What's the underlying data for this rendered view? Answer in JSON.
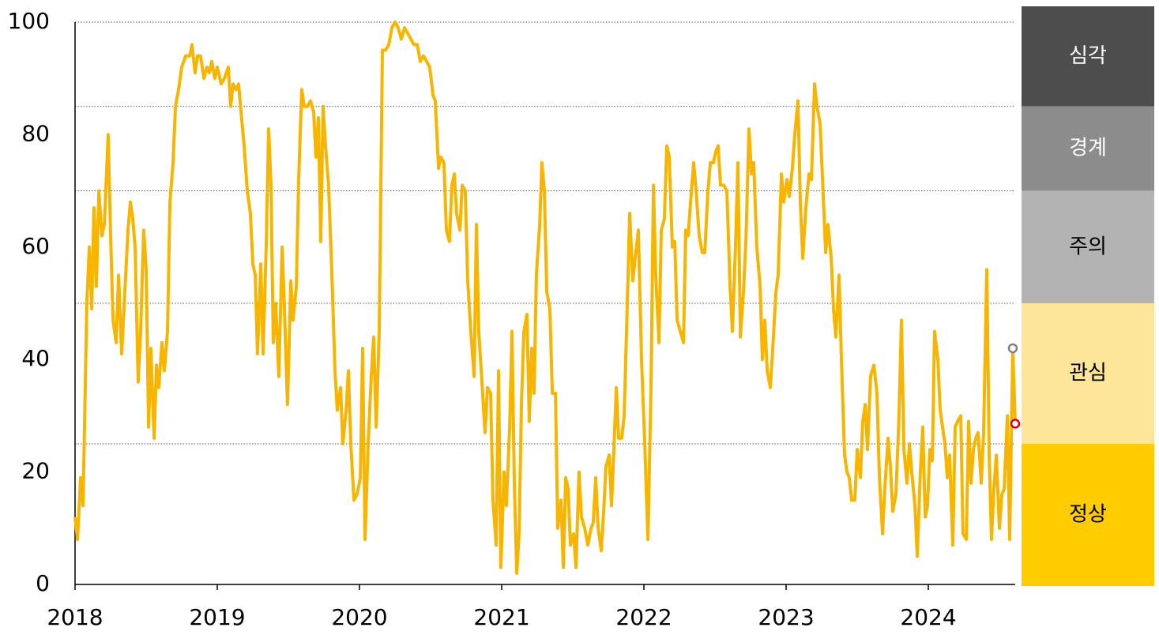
{
  "chart_data": {
    "type": "line",
    "x": [
      2018.0,
      2018.017,
      2018.039,
      2018.056,
      2018.083,
      2018.1,
      2018.117,
      2018.133,
      2018.15,
      2018.167,
      2018.189,
      2018.206,
      2018.233,
      2018.25,
      2018.267,
      2018.289,
      2018.306,
      2018.328,
      2018.35,
      2018.372,
      2018.389,
      2018.406,
      2018.422,
      2018.444,
      2018.461,
      2018.483,
      2018.5,
      2018.517,
      2018.533,
      2018.556,
      2018.572,
      2018.589,
      2018.611,
      2018.628,
      2018.65,
      2018.667,
      2018.689,
      2018.706,
      2018.728,
      2018.75,
      2018.778,
      2018.806,
      2018.822,
      2018.844,
      2018.861,
      2018.883,
      2018.906,
      2018.928,
      2018.944,
      2018.961,
      2018.983,
      2019.0,
      2019.028,
      2019.05,
      2019.078,
      2019.094,
      2019.111,
      2019.133,
      2019.15,
      2019.167,
      2019.189,
      2019.211,
      2019.233,
      2019.25,
      2019.267,
      2019.283,
      2019.306,
      2019.322,
      2019.344,
      2019.361,
      2019.378,
      2019.394,
      2019.411,
      2019.433,
      2019.456,
      2019.472,
      2019.494,
      2019.517,
      2019.533,
      2019.556,
      2019.572,
      2019.594,
      2019.611,
      2019.633,
      2019.656,
      2019.678,
      2019.694,
      2019.711,
      2019.728,
      2019.744,
      2019.761,
      2019.783,
      2019.806,
      2019.828,
      2019.844,
      2019.867,
      2019.883,
      2019.906,
      2019.922,
      2019.939,
      2019.961,
      2019.983,
      2020.006,
      2020.022,
      2020.039,
      2020.061,
      2020.083,
      2020.1,
      2020.117,
      2020.139,
      2020.161,
      2020.183,
      2020.206,
      2020.228,
      2020.25,
      2020.272,
      2020.294,
      2020.317,
      2020.339,
      2020.361,
      2020.383,
      2020.406,
      2020.428,
      2020.45,
      2020.472,
      2020.494,
      2020.517,
      2020.533,
      2020.556,
      2020.572,
      2020.594,
      2020.611,
      2020.633,
      2020.65,
      2020.667,
      2020.683,
      2020.706,
      2020.722,
      2020.744,
      2020.761,
      2020.783,
      2020.806,
      2020.822,
      2020.839,
      2020.861,
      2020.883,
      2020.9,
      2020.922,
      2020.939,
      2020.961,
      2020.978,
      2020.994,
      2021.017,
      2021.033,
      2021.056,
      2021.072,
      2021.089,
      2021.106,
      2021.122,
      2021.139,
      2021.156,
      2021.178,
      2021.194,
      2021.211,
      2021.228,
      2021.244,
      2021.267,
      2021.283,
      2021.3,
      2021.317,
      2021.339,
      2021.356,
      2021.378,
      2021.394,
      2021.417,
      2021.433,
      2021.45,
      2021.467,
      2021.483,
      2021.506,
      2021.522,
      2021.544,
      2021.561,
      2021.583,
      2021.606,
      2021.628,
      2021.644,
      2021.661,
      2021.678,
      2021.7,
      2021.717,
      2021.733,
      2021.756,
      2021.772,
      2021.789,
      2021.806,
      2021.822,
      2021.844,
      2021.861,
      2021.883,
      2021.9,
      2021.922,
      2021.939,
      2021.961,
      2021.983,
      2022.006,
      2022.028,
      2022.05,
      2022.067,
      2022.083,
      2022.106,
      2022.122,
      2022.144,
      2022.161,
      2022.178,
      2022.2,
      2022.217,
      2022.233,
      2022.256,
      2022.278,
      2022.294,
      2022.311,
      2022.328,
      2022.35,
      2022.367,
      2022.389,
      2022.411,
      2022.428,
      2022.45,
      2022.467,
      2022.489,
      2022.506,
      2022.522,
      2022.539,
      2022.561,
      2022.583,
      2022.606,
      2022.622,
      2022.644,
      2022.661,
      2022.678,
      2022.7,
      2022.717,
      2022.739,
      2022.756,
      2022.772,
      2022.794,
      2022.817,
      2022.833,
      2022.85,
      2022.867,
      2022.889,
      2022.906,
      2022.928,
      2022.944,
      2022.967,
      2022.983,
      2023.006,
      2023.022,
      2023.044,
      2023.061,
      2023.083,
      2023.1,
      2023.117,
      2023.139,
      2023.161,
      2023.178,
      2023.2,
      2023.217,
      2023.239,
      2023.256,
      2023.278,
      2023.294,
      2023.317,
      2023.333,
      2023.35,
      2023.372,
      2023.389,
      2023.411,
      2023.428,
      2023.444,
      2023.461,
      2023.483,
      2023.5,
      2023.522,
      2023.539,
      2023.556,
      2023.572,
      2023.594,
      2023.617,
      2023.639,
      2023.656,
      2023.678,
      2023.694,
      2023.717,
      2023.733,
      2023.75,
      2023.772,
      2023.794,
      2023.811,
      2023.828,
      2023.85,
      2023.867,
      2023.883,
      2023.906,
      2023.922,
      2023.944,
      2023.961,
      2023.978,
      2023.994,
      2024.011,
      2024.028,
      2024.044,
      2024.067,
      2024.083,
      2024.1,
      2024.117,
      2024.133,
      2024.15,
      2024.172,
      2024.189,
      2024.206,
      2024.228,
      2024.244,
      2024.267,
      2024.283,
      2024.3,
      2024.317,
      2024.333,
      2024.35,
      2024.372,
      2024.389,
      2024.411,
      2024.428,
      2024.444,
      2024.461,
      2024.478,
      2024.5,
      2024.517,
      2024.533,
      2024.556,
      2024.572,
      2024.594,
      2024.611
    ],
    "series": [
      {
        "color": "#f7b500",
        "values": [
          12,
          8,
          19,
          14,
          50,
          60,
          49,
          67,
          53,
          70,
          62,
          64,
          80,
          62,
          47,
          43,
          55,
          41,
          52,
          63,
          68,
          65,
          60,
          36,
          45,
          63,
          56,
          28,
          42,
          26,
          39,
          35,
          43,
          38,
          45,
          68,
          75,
          85,
          88,
          92,
          94,
          94,
          96,
          91,
          94,
          94,
          90,
          92,
          91,
          93,
          90,
          92,
          89,
          90,
          92,
          85,
          89,
          88,
          89,
          84,
          78,
          70,
          66,
          57,
          55,
          41,
          57,
          41,
          60,
          81,
          71,
          43,
          50,
          37,
          60,
          49,
          32,
          54,
          47,
          53,
          72,
          88,
          85,
          85,
          86,
          84,
          76,
          83,
          61,
          85,
          78,
          71,
          55,
          38,
          31,
          35,
          25,
          31,
          38,
          25,
          15,
          16,
          19,
          42,
          8,
          25,
          37,
          44,
          28,
          45,
          95,
          95,
          96,
          99,
          100,
          99,
          97,
          99,
          98,
          97,
          96,
          96,
          93,
          94,
          93,
          92,
          87,
          86,
          74,
          76,
          75,
          63,
          61,
          71,
          73,
          66,
          63,
          71,
          70,
          54,
          45,
          37,
          64,
          45,
          36,
          27,
          35,
          34,
          15,
          7,
          38,
          3,
          20,
          14,
          28,
          45,
          18,
          2,
          9,
          32,
          45,
          48,
          29,
          42,
          34,
          55,
          64,
          75,
          70,
          52,
          49,
          34,
          34,
          10,
          15,
          3,
          19,
          17,
          7,
          9,
          3,
          20,
          12,
          10,
          7,
          10,
          11,
          19,
          10,
          6,
          13,
          21,
          23,
          14,
          24,
          35,
          26,
          26,
          30,
          50,
          66,
          54,
          58,
          63,
          40,
          25,
          8,
          35,
          71,
          55,
          43,
          63,
          65,
          78,
          76,
          60,
          61,
          47,
          45,
          43,
          63,
          62,
          68,
          75,
          70,
          62,
          59,
          59,
          70,
          75,
          75,
          77,
          78,
          71,
          71,
          70,
          53,
          45,
          60,
          75,
          44,
          52,
          61,
          81,
          73,
          75,
          60,
          53,
          40,
          47,
          38,
          35,
          42,
          52,
          55,
          73,
          68,
          72,
          69,
          74,
          80,
          86,
          68,
          58,
          67,
          73,
          72,
          89,
          85,
          82,
          72,
          59,
          64,
          58,
          49,
          44,
          55,
          40,
          23,
          20,
          19,
          15,
          15,
          24,
          19,
          29,
          32,
          24,
          37,
          39,
          34,
          19,
          9,
          17,
          26,
          21,
          13,
          16,
          30,
          47,
          24,
          18,
          25,
          20,
          14,
          5,
          20,
          28,
          12,
          14,
          24,
          22,
          45,
          40,
          31,
          28,
          25,
          19,
          23,
          7,
          28,
          29,
          30,
          9,
          8,
          29,
          18,
          24,
          26,
          27,
          18,
          27,
          56,
          23,
          8,
          17,
          23,
          10,
          16,
          17,
          30,
          8,
          42,
          28.6
        ]
      }
    ],
    "end_marker_colors": [
      "#808080",
      "#e00000"
    ],
    "xlim": [
      2018,
      2024.611
    ],
    "xticks": [
      2018,
      2019,
      2020,
      2021,
      2022,
      2023,
      2024
    ],
    "ylim": [
      0,
      100
    ],
    "yticks": [
      0,
      20,
      40,
      60,
      80,
      100
    ],
    "bands": [
      {
        "label": "심각",
        "from": 85,
        "to": 100,
        "color": "#4d4d4d",
        "text_color": "#ffffff"
      },
      {
        "label": "경계",
        "from": 70,
        "to": 85,
        "color": "#8c8c8c",
        "text_color": "#ffffff"
      },
      {
        "label": "주의",
        "from": 50,
        "to": 70,
        "color": "#b3b3b3",
        "text_color": "#000000"
      },
      {
        "label": "관심",
        "from": 25,
        "to": 50,
        "color": "#fde699",
        "text_color": "#000000"
      },
      {
        "label": "정상",
        "from": 0,
        "to": 25,
        "color": "#ffcc00",
        "text_color": "#000000"
      }
    ]
  }
}
